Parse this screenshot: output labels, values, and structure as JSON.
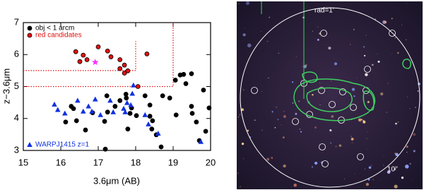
{
  "chart_data": {
    "type": "scatter",
    "xlabel": "3.6μm (AB)",
    "ylabel": "z−3.6μm",
    "xlim": [
      15,
      20
    ],
    "ylim": [
      3,
      7
    ],
    "xticks": [
      15,
      16,
      17,
      18,
      19,
      20
    ],
    "yticks": [
      3,
      4,
      5,
      6,
      7
    ],
    "series": [
      {
        "name": "obj < 1 arcm",
        "color": "#000000",
        "marker": "circle",
        "legend": "upper left",
        "x": [
          16.28,
          16.34,
          16.42,
          16.13,
          16.66,
          16.85,
          17.23,
          17.25,
          17.17,
          17.45,
          17.58,
          17.74,
          17.75,
          17.89,
          17.85,
          18.02,
          17.79,
          18.25,
          18.38,
          18.38,
          18.45,
          18.43,
          18.55,
          18.68,
          18.72,
          18.91,
          19.06,
          19.08,
          19.19,
          19.28,
          19.34,
          19.49,
          19.49,
          19.51,
          19.62,
          19.7,
          19.87,
          19.96,
          19.81,
          17.19
        ],
        "values": [
          4.38,
          4.31,
          3.93,
          3.89,
          3.64,
          4.18,
          4.71,
          4.2,
          3.91,
          4.38,
          4.56,
          4.76,
          4.64,
          4.33,
          4.16,
          4.09,
          3.67,
          4.71,
          4.42,
          4.07,
          3.93,
          3.67,
          3.49,
          3.11,
          4.71,
          4.64,
          5.2,
          4.11,
          5.36,
          5.38,
          5.09,
          5.4,
          4.38,
          4.16,
          3.89,
          3.31,
          3.6,
          4.33,
          4.89,
          3.04
        ]
      },
      {
        "name": "red candidates",
        "color": "#e01010",
        "marker": "circle",
        "legend": "upper left",
        "x": [
          16.4,
          16.6,
          16.51,
          16.7,
          17.0,
          17.25,
          17.34,
          17.58,
          17.7,
          17.79,
          17.58,
          17.7,
          18.06,
          18.3
        ],
        "values": [
          6.09,
          5.98,
          5.78,
          5.84,
          6.24,
          6.11,
          5.93,
          5.84,
          5.67,
          5.49,
          5.56,
          5.42,
          5.0,
          6.02
        ]
      },
      {
        "name": "WARPJ1415 z=1",
        "color": "#1030e0",
        "marker": "triangle",
        "legend": "lower left",
        "x": [
          15.83,
          15.92,
          16.11,
          16.45,
          16.6,
          16.74,
          16.83,
          16.92,
          17.06,
          17.32,
          17.4,
          17.68,
          17.72,
          17.77,
          17.87,
          17.91,
          17.94,
          18.25,
          18.34,
          18.6,
          19.74
        ],
        "values": [
          4.44,
          4.27,
          4.16,
          4.56,
          4.22,
          4.38,
          4.22,
          4.6,
          4.11,
          4.56,
          4.2,
          4.31,
          4.2,
          4.49,
          4.42,
          4.78,
          5.04,
          4.11,
          3.82,
          3.53,
          3.27
        ]
      },
      {
        "color": "#ff30ff",
        "marker": "star",
        "x": [
          16.92
        ],
        "values": [
          5.76
        ]
      }
    ],
    "regions": {
      "color": "#e01010",
      "lines": [
        {
          "x": [
            15,
            18,
            18
          ],
          "y": [
            5.5,
            5.5,
            6.42
          ]
        },
        {
          "x": [
            15,
            19,
            19
          ],
          "y": [
            5,
            5,
            7
          ]
        }
      ]
    }
  },
  "image": {
    "labels": [
      "rad=1'",
      "10''"
    ]
  }
}
